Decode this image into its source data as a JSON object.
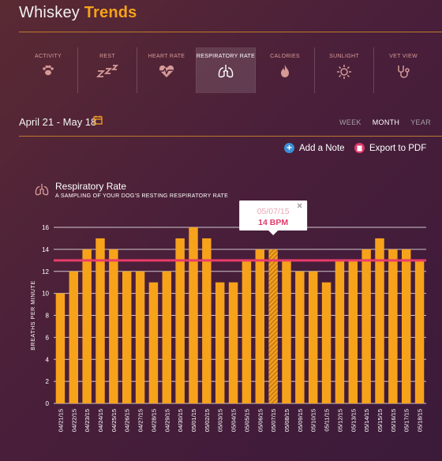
{
  "header": {
    "name": "Whiskey",
    "accent": "Trends"
  },
  "tabs": [
    {
      "label": "ACTIVITY",
      "icon": "paw-icon",
      "active": false
    },
    {
      "label": "REST",
      "icon": "zzz-icon",
      "active": false
    },
    {
      "label": "HEART RATE",
      "icon": "heart-rate-icon",
      "active": false
    },
    {
      "label": "RESPIRATORY RATE",
      "icon": "lungs-icon",
      "active": true
    },
    {
      "label": "CALORIES",
      "icon": "flame-icon",
      "active": false
    },
    {
      "label": "SUNLIGHT",
      "icon": "sun-icon",
      "active": false
    },
    {
      "label": "VET VIEW",
      "icon": "stethoscope-icon",
      "active": false
    }
  ],
  "date_range": "April 21 - May 18",
  "views": [
    "WEEK",
    "MONTH",
    "YEAR"
  ],
  "active_view": "MONTH",
  "actions": {
    "add_note": "Add a Note",
    "export_pdf": "Export to PDF"
  },
  "colors": {
    "accent": "#f7a21b",
    "bar": "#f7a21b",
    "average_line": "#e83c6a",
    "note_button": "#3a8fd6",
    "pdf_button": "#e23a6b"
  },
  "chart_header": {
    "title": "Respiratory Rate",
    "subtitle": "A SAMPLING OF YOUR DOG'S RESTING RESPIRATORY RATE"
  },
  "tooltip": {
    "date": "05/07/15",
    "value": "14 BPM"
  },
  "chart_data": {
    "type": "bar",
    "ylabel": "BREATHS PER MINUTE",
    "xlabel": "",
    "ylim": [
      0,
      16
    ],
    "yticks": [
      0,
      2,
      4,
      6,
      8,
      10,
      12,
      14,
      16
    ],
    "categories": [
      "04/21/15",
      "04/22/15",
      "04/23/15",
      "04/24/15",
      "04/25/15",
      "04/26/15",
      "04/27/15",
      "04/28/15",
      "04/29/15",
      "04/30/15",
      "05/01/15",
      "05/02/15",
      "05/03/15",
      "05/04/15",
      "05/05/15",
      "05/06/15",
      "05/07/15",
      "05/08/15",
      "05/09/15",
      "05/10/15",
      "05/11/15",
      "05/12/15",
      "05/13/15",
      "05/14/15",
      "05/15/15",
      "05/16/15",
      "05/17/15",
      "05/18/15"
    ],
    "values": [
      10,
      12,
      14,
      15,
      14,
      12,
      12,
      11,
      12,
      15,
      16,
      15,
      11,
      11,
      13,
      14,
      14,
      13,
      12,
      12,
      11,
      13,
      13,
      14,
      15,
      14,
      14,
      13
    ],
    "highlighted_category": "05/07/15",
    "average_line": 13,
    "grid": true
  }
}
